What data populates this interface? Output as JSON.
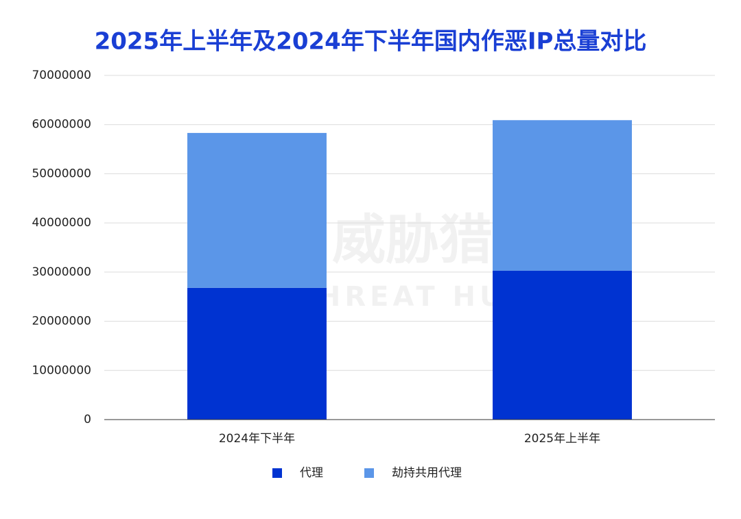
{
  "chart_data": {
    "type": "stacked_bar",
    "title": "2025年上半年及2024年下半年国内作恶IP总量对比",
    "categories": [
      "2024年下半年",
      "2025年上半年"
    ],
    "series": [
      {
        "name": "代理",
        "color": "#0033d1",
        "values": [
          26800000,
          30300000
        ]
      },
      {
        "name": "劫持共用代理",
        "color": "#5b96e8",
        "values": [
          31500000,
          30600000
        ]
      }
    ],
    "ylim": [
      0,
      70000000
    ],
    "yticks": [
      0,
      10000000,
      20000000,
      30000000,
      40000000,
      50000000,
      60000000,
      70000000
    ],
    "grid": true,
    "legend": "bottom",
    "watermark": [
      "威胁猎人",
      "THREAT HUNTER"
    ]
  }
}
